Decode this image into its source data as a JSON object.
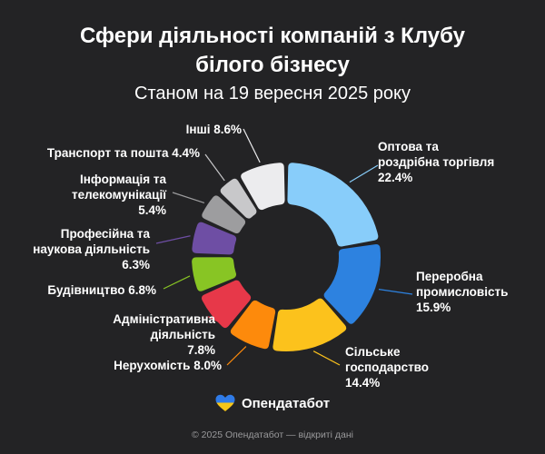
{
  "title_line1": "Сфери діяльності компаній з Клубу",
  "title_line2": "білого бізнесу",
  "subtitle": "Станом на 19 вересня 2025 року",
  "brand": {
    "name": "Опендатабот",
    "logo": "ukraine-flag-heart-logo",
    "colors": [
      "#2f7be8",
      "#f5c518"
    ]
  },
  "footer": "© 2025 Опендатабот — відкриті дані",
  "chart_data": {
    "type": "pie",
    "donut": true,
    "unit": "%",
    "slices": [
      {
        "label": [
          "Оптова та",
          "роздрібна торгівля"
        ],
        "value_text": "22.4%",
        "value": 22.4,
        "color": "#88cdfa"
      },
      {
        "label": [
          "Переробна",
          "промисловість"
        ],
        "value_text": "15.9%",
        "value": 15.9,
        "color": "#2d82e0"
      },
      {
        "label": [
          "Сільське",
          "господарство"
        ],
        "value_text": "14.4%",
        "value": 14.4,
        "color": "#fcc21c"
      },
      {
        "label": [
          "Нерухомість"
        ],
        "value_text": "8.0%",
        "value": 8.0,
        "color": "#fd8a0c"
      },
      {
        "label": [
          "Адміністративна",
          "діяльність"
        ],
        "value_text": "7.8%",
        "value": 7.8,
        "color": "#e73849"
      },
      {
        "label": [
          "Будівництво"
        ],
        "value_text": "6.8%",
        "value": 6.8,
        "color": "#88c524"
      },
      {
        "label": [
          "Професійна та",
          "наукова діяльність"
        ],
        "value_text": "6.3%",
        "value": 6.3,
        "color": "#6e4ea4"
      },
      {
        "label": [
          "Інформація та",
          "телекомунікації"
        ],
        "value_text": "5.4%",
        "value": 5.4,
        "color": "#9d9d9f"
      },
      {
        "label": [
          "Транспорт та пошта"
        ],
        "value_text": "4.4%",
        "value": 4.4,
        "color": "#c8c8ca"
      },
      {
        "label": [
          "Інші"
        ],
        "value_text": "8.6%",
        "value": 8.6,
        "color": "#ececee"
      }
    ]
  }
}
